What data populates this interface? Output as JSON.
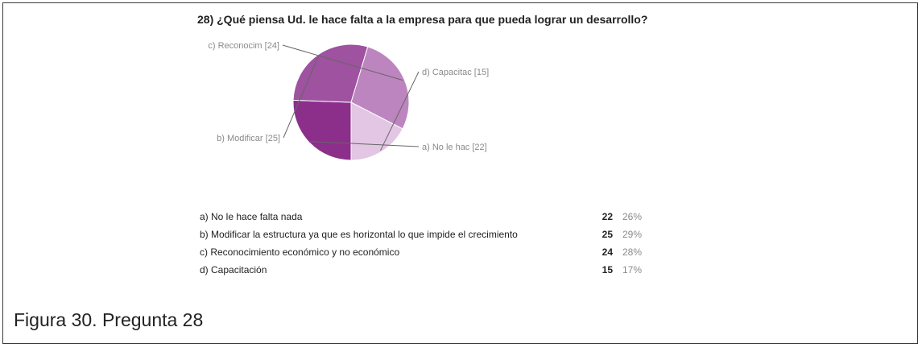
{
  "figure": {
    "question_title": "28) ¿Qué piensa Ud. le hace falta a la empresa para que pueda lograr un desarrollo?",
    "caption": "Figura 30. Pregunta 28"
  },
  "chart_data": {
    "type": "pie",
    "title": "28) ¿Qué piensa Ud. le hace falta a la empresa para que pueda lograr un desarrollo?",
    "slices": [
      {
        "label": "a) No le hac [22]",
        "value": 22,
        "color": "#8b2f8b"
      },
      {
        "label": "b) Modificar [25]",
        "value": 25,
        "color": "#9e52a0"
      },
      {
        "label": "c) Reconocim [24]",
        "value": 24,
        "color": "#bd85bf"
      },
      {
        "label": "d) Capacitac [15]",
        "value": 15,
        "color": "#e2c6e3"
      }
    ],
    "start_angle_deg": 90,
    "direction": "clockwise",
    "legend": "callout labels beside slices"
  },
  "summary_table": [
    {
      "option": "a) No le hace falta nada",
      "count": "22",
      "percent": "26%"
    },
    {
      "option": "b) Modificar la estructura ya que es horizontal lo que impide el crecimiento",
      "count": "25",
      "percent": "29%"
    },
    {
      "option": "c) Reconocimiento económico y no económico",
      "count": "24",
      "percent": "28%"
    },
    {
      "option": "d) Capacitación",
      "count": "15",
      "percent": "17%"
    }
  ]
}
